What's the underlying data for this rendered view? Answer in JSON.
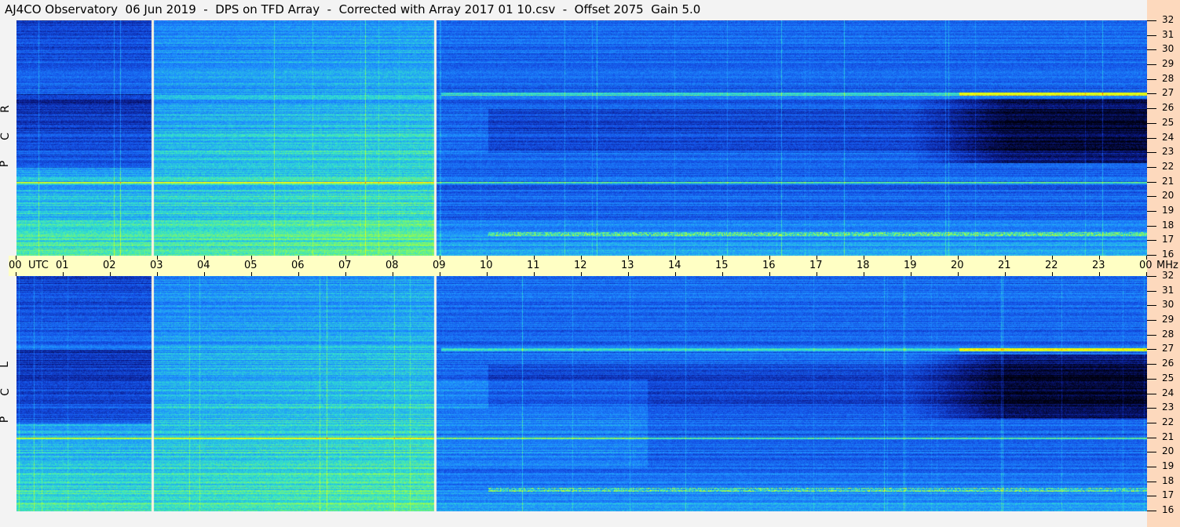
{
  "title": "AJ4CO Observatory  06 Jun 2019  -  DPS on TFD Array  -  Corrected with Array 2017 01 10.csv  -  Offset 2075  Gain 5.0",
  "chart_data": {
    "type": "heatmap",
    "title": "AJ4CO Observatory  06 Jun 2019  -  DPS on TFD Array  -  Corrected with Array 2017 01 10.csv  -  Offset 2075  Gain 5.0",
    "xlabel": "UTC",
    "ylabel": "MHz",
    "x_ticks": [
      "00",
      "01",
      "02",
      "03",
      "04",
      "05",
      "06",
      "07",
      "08",
      "09",
      "10",
      "11",
      "12",
      "13",
      "14",
      "15",
      "16",
      "17",
      "18",
      "19",
      "20",
      "21",
      "22",
      "23",
      "00"
    ],
    "y_ticks": [
      "32",
      "31",
      "30",
      "29",
      "28",
      "27",
      "26",
      "25",
      "24",
      "23",
      "22",
      "21",
      "20",
      "19",
      "18",
      "17",
      "16"
    ],
    "xlim": [
      0,
      24
    ],
    "ylim": [
      16,
      32
    ],
    "panels": [
      {
        "label": [
          "R",
          "C",
          "P"
        ]
      },
      {
        "label": [
          "L",
          "C",
          "P"
        ]
      }
    ],
    "colormap": [
      "#000010",
      "#0a1a8a",
      "#1450e6",
      "#1e90ff",
      "#30e0d0",
      "#a0ff40",
      "#ffff00",
      "#ff4000",
      "#ff30ff",
      "#ffffff"
    ],
    "calibration_gaps_utc": [
      2.87,
      8.87
    ]
  },
  "colors": {
    "background": "#f3f3f3",
    "time_band": "#ffffc4",
    "freq_band": "#fdd9bd"
  }
}
